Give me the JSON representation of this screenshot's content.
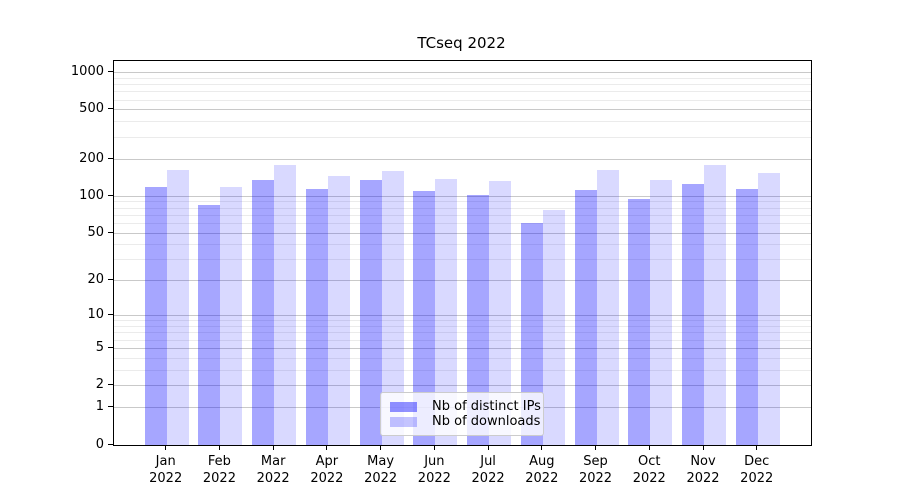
{
  "chart_data": {
    "type": "bar",
    "title": "TCseq 2022",
    "categories": [
      "Jan",
      "Feb",
      "Mar",
      "Apr",
      "May",
      "Jun",
      "Jul",
      "Aug",
      "Sep",
      "Oct",
      "Nov",
      "Dec"
    ],
    "category_year": "2022",
    "series": [
      {
        "name": "Nb of distinct IPs",
        "color": "#0000ff",
        "alpha": 0.35,
        "values": [
          120,
          85,
          135,
          115,
          135,
          110,
          103,
          60,
          112,
          95,
          127,
          114
        ]
      },
      {
        "name": "Nb of downloads",
        "color": "#0000ff",
        "alpha": 0.15,
        "values": [
          163,
          119,
          180,
          146,
          160,
          138,
          134,
          78,
          162,
          136,
          180,
          156
        ]
      }
    ],
    "xlabel": "",
    "ylabel": "",
    "yticks": [
      0,
      1,
      2,
      5,
      10,
      20,
      50,
      100,
      200,
      500,
      1000
    ],
    "ylim": [
      0,
      1242
    ],
    "scale": "log1p",
    "grid": true,
    "legend_position": "lower center",
    "grid_major_color": "#c9c9c9",
    "grid_minor_color": "#ebebeb",
    "frame_color": "#000000"
  }
}
